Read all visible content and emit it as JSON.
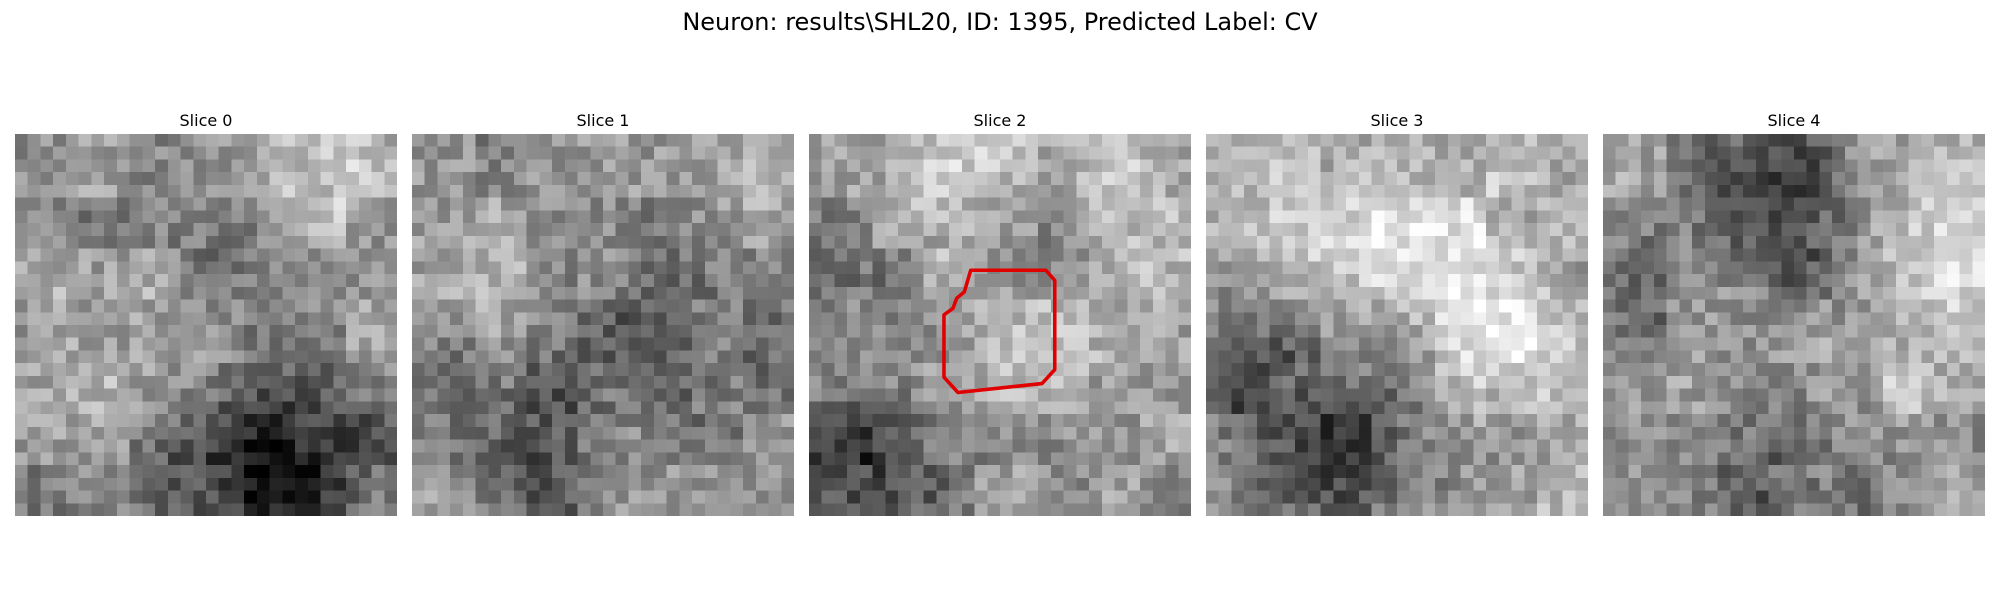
{
  "figure": {
    "title": "Neuron: results\\SHL20, ID: 1395, Predicted Label: CV"
  },
  "colors": {
    "background": "#ffffff",
    "contour": "#e00000"
  },
  "slices": [
    {
      "title": "Slice 0",
      "has_contour": false
    },
    {
      "title": "Slice 1",
      "has_contour": false
    },
    {
      "title": "Slice 2",
      "has_contour": true
    },
    {
      "title": "Slice 3",
      "has_contour": false
    },
    {
      "title": "Slice 4",
      "has_contour": false
    }
  ]
}
